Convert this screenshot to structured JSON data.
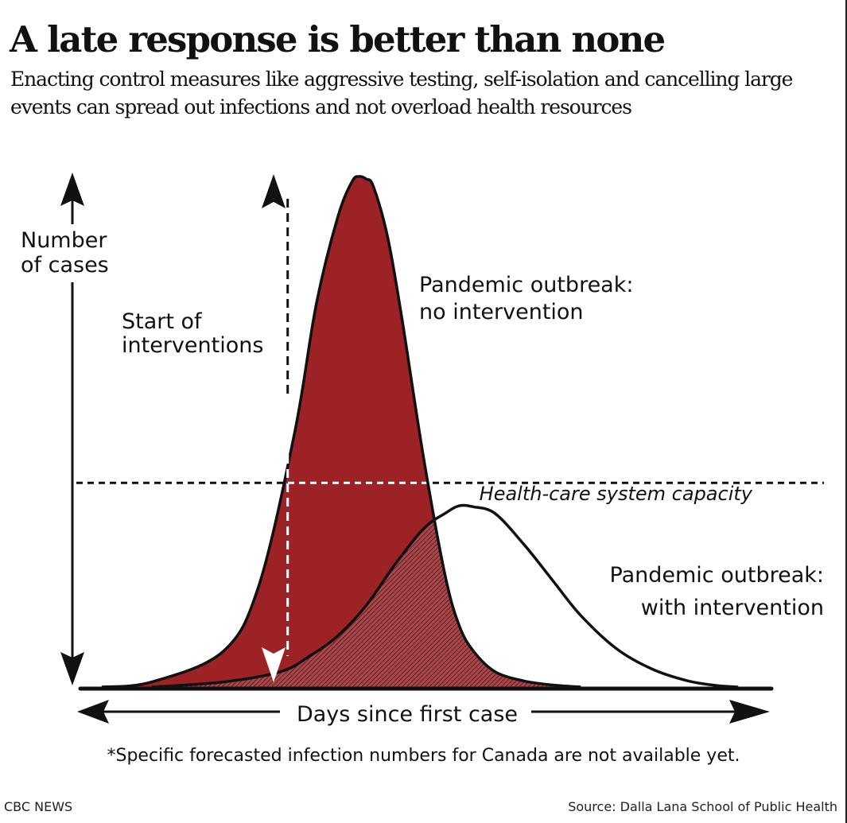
{
  "header": {
    "title": "A late response is better than none",
    "subtitle": "Enacting control measures like aggressive testing, self-isolation and cancelling large events can spread out infections and not overload health resources"
  },
  "colors": {
    "no_intervention_fill": "#9c2226",
    "with_intervention_fill": "#a8474a",
    "line": "#111111",
    "background": "#ffffff"
  },
  "chart_data": {
    "type": "area",
    "title": "A late response is better than none",
    "xlabel": "Days since first case",
    "ylabel_lines": [
      "Number",
      "of cases"
    ],
    "x_ticks": [],
    "y_ticks": [],
    "grid": false,
    "xlim": [
      0,
      100
    ],
    "ylim": [
      0,
      100
    ],
    "series": [
      {
        "name": "Pandemic outbreak: no intervention",
        "label_lines": [
          "Pandemic outbreak:",
          "no intervention"
        ],
        "fill": "solid",
        "x": [
          3,
          10,
          20,
          25,
          30,
          33,
          36,
          38,
          39,
          40,
          41,
          43,
          45,
          48,
          51,
          53,
          55,
          58,
          62,
          66,
          70
        ],
        "values": [
          0,
          1,
          7,
          20,
          50,
          75,
          92,
          99,
          100,
          99.5,
          98,
          88,
          72,
          45,
          22,
          12,
          7,
          3,
          1.2,
          0.4,
          0
        ]
      },
      {
        "name": "Pandemic outbreak: with intervention",
        "label_lines": [
          "Pandemic outbreak:",
          "with intervention"
        ],
        "fill": "hatched",
        "x": [
          10,
          20,
          28,
          32,
          36,
          40,
          44,
          48,
          51,
          53,
          55,
          58,
          62,
          66,
          70,
          75,
          80,
          85,
          89,
          92
        ],
        "values": [
          0,
          1,
          3,
          6,
          10,
          16,
          24,
          31,
          34,
          35.5,
          35.3,
          34,
          28,
          21,
          14,
          7.5,
          3.5,
          1.2,
          0.3,
          0
        ]
      }
    ],
    "annotations": [
      {
        "text": "Health-care system capacity",
        "type": "horizontal-dashed-line",
        "y": 40
      },
      {
        "text_lines": [
          "Start of",
          "interventions"
        ],
        "type": "vertical-dashed-arrow",
        "x": 29
      }
    ]
  },
  "footer": {
    "footnote": "*Specific forecasted infection numbers for Canada are not available yet.",
    "brand": "CBC NEWS",
    "source": "Source: Dalla Lana School of Public Health"
  }
}
